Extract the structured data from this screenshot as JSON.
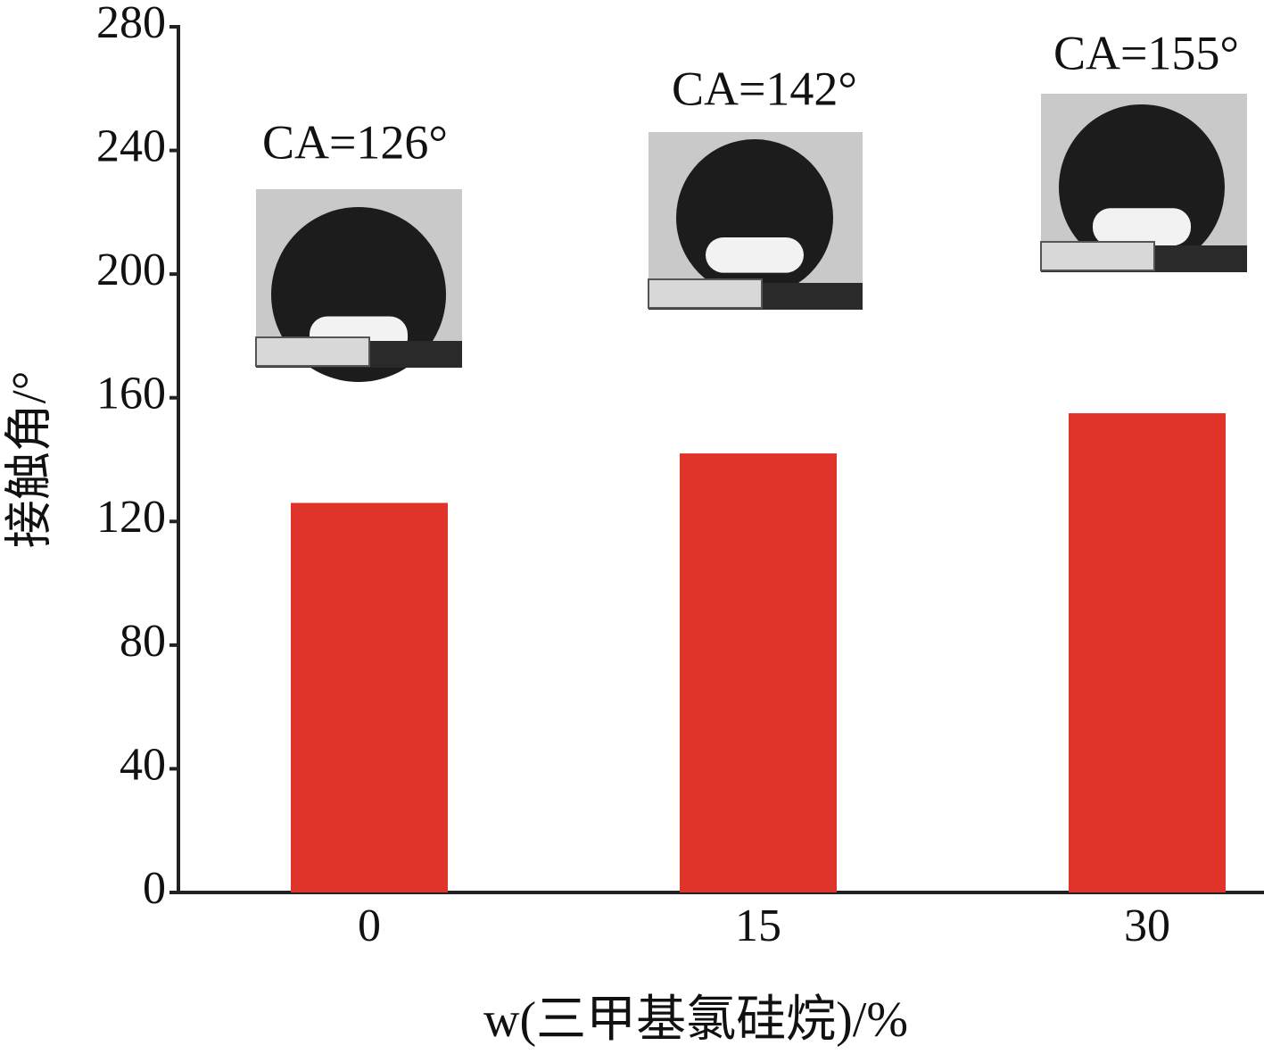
{
  "chart_data": {
    "type": "bar",
    "x_label": "w(三甲基氯硅烷)/%",
    "y_label": "接触角/°",
    "categories": [
      "0",
      "15",
      "30"
    ],
    "values": [
      126,
      142,
      155
    ],
    "value_labels": [
      "CA=126°",
      "CA=142°",
      "CA=155°"
    ],
    "color": "#e0342b",
    "ylim": [
      0,
      280
    ],
    "yticks": [
      0,
      40,
      80,
      120,
      160,
      200,
      240,
      280
    ],
    "grid": false
  }
}
